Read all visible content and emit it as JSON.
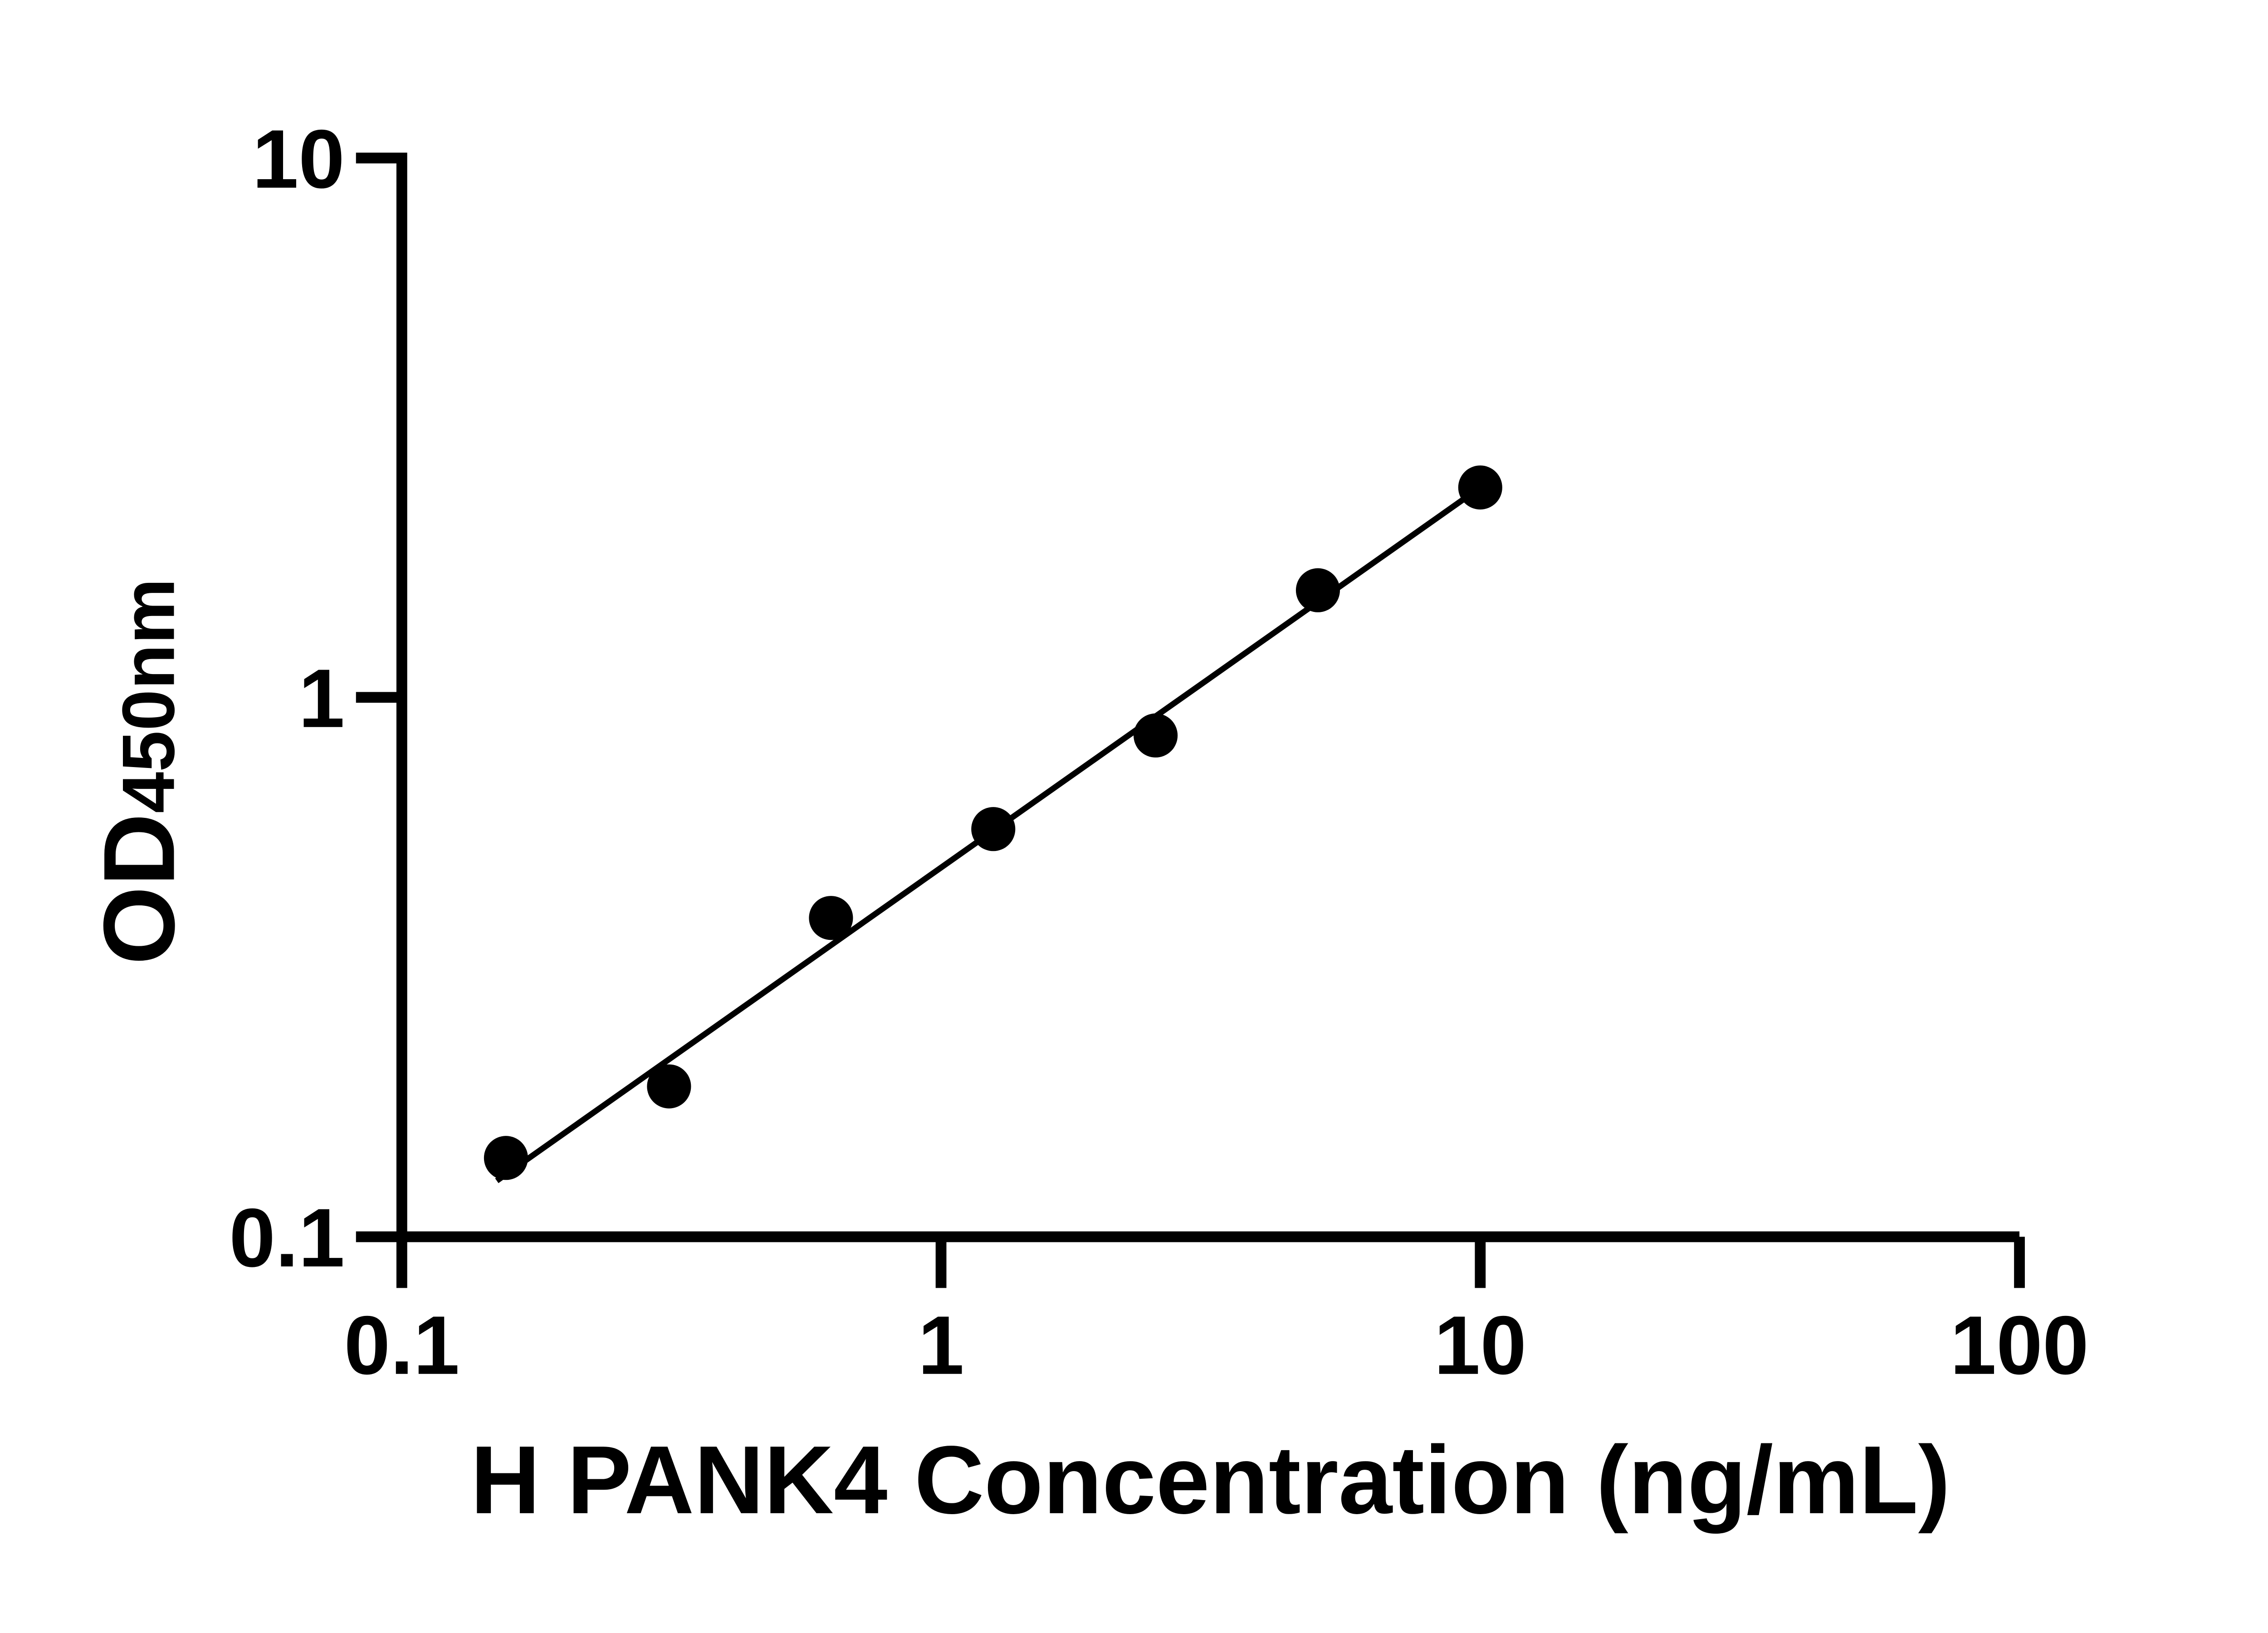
{
  "page": {
    "background": "#ffffff",
    "foreground": "#000000"
  },
  "chart_data": {
    "type": "scatter",
    "title": "",
    "xlabel": "H PANK4 Concentration (ng/mL)",
    "ylabel": "OD",
    "ylabel_subscript": "450nm",
    "x_scale": "log",
    "y_scale": "log",
    "xlim": [
      0.1,
      100
    ],
    "ylim": [
      0.1,
      10
    ],
    "x_ticks": [
      {
        "value": 0.1,
        "label": "0.1"
      },
      {
        "value": 1,
        "label": "1"
      },
      {
        "value": 10,
        "label": "10"
      },
      {
        "value": 100,
        "label": "100"
      }
    ],
    "y_ticks": [
      {
        "value": 0.1,
        "label": "0.1"
      },
      {
        "value": 1,
        "label": "1"
      },
      {
        "value": 10,
        "label": "10"
      }
    ],
    "grid": false,
    "legend": null,
    "marker_color": "#000000",
    "line_color": "#000000",
    "points": [
      {
        "x": 0.156,
        "y": 0.14
      },
      {
        "x": 0.313,
        "y": 0.19
      },
      {
        "x": 0.625,
        "y": 0.39
      },
      {
        "x": 1.25,
        "y": 0.57
      },
      {
        "x": 2.5,
        "y": 0.85
      },
      {
        "x": 5,
        "y": 1.58
      },
      {
        "x": 10,
        "y": 2.45
      }
    ],
    "trend_line": {
      "x1": 0.15,
      "y1": 0.127,
      "x2": 10,
      "y2": 2.45
    }
  }
}
